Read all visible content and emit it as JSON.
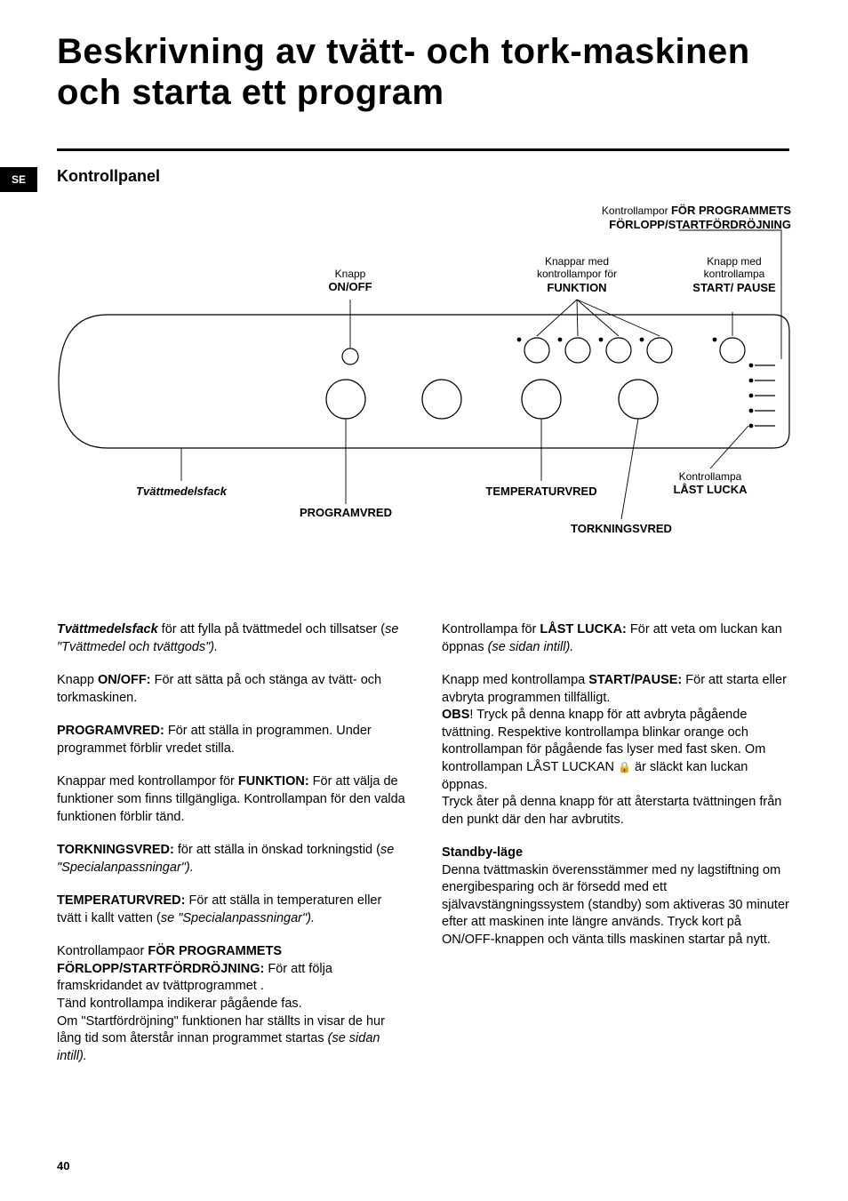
{
  "page_number": "40",
  "side_tab": "SE",
  "title": "Beskrivning av tvätt- och tork-maskinen och starta ett program",
  "section_title": "Kontrollpanel",
  "diagram": {
    "panel_outline_color": "#000000",
    "panel_stroke_width": 1.2,
    "top_right": {
      "prefix": "Kontrollampor ",
      "bold": "FÖR PROGRAMMETS FÖRLOPP/STARTFÖRDRÖJNING"
    },
    "labels": {
      "onoff": {
        "sm": "Knapp",
        "b": "ON/OFF"
      },
      "funkt": {
        "sm1": "Knappar med",
        "sm2": "kontrollampor för",
        "b": "FUNKTION"
      },
      "start": {
        "sm1": "Knapp med",
        "sm2": "kontrollampa",
        "b": "START/ PAUSE"
      },
      "tvatt": {
        "b_it": "Tvättmedelsfack"
      },
      "prog": {
        "b": "PROGRAMVRED"
      },
      "temp": {
        "b": "TEMPERATURVRED"
      },
      "tork": {
        "b": "TORKNINGSVRED"
      },
      "las": {
        "sm": "Kontrollampa",
        "b": "LÅST LUCKA"
      }
    },
    "buttons": {
      "big_radius": 22,
      "small_radius": 14,
      "led_radius": 2.4,
      "fn_count": 4
    }
  },
  "left_col": [
    {
      "type": "p",
      "runs": [
        {
          "t": "Tvättmedelsfack",
          "cls": "ital-bld"
        },
        {
          "t": " för att fylla på tvättmedel och tillsatser ("
        },
        {
          "t": "se \"Tvättmedel och tvättgods\").",
          "cls": "ital"
        }
      ]
    },
    {
      "type": "p",
      "runs": [
        {
          "t": "Knapp "
        },
        {
          "t": "ON/OFF:",
          "cls": "bld"
        },
        {
          "t": " För att sätta på och stänga av tvätt- och torkmaskinen."
        }
      ]
    },
    {
      "type": "p",
      "runs": [
        {
          "t": "PROGRAMVRED:",
          "cls": "bld"
        },
        {
          "t": " För att ställa in programmen. Under programmet förblir vredet stilla."
        }
      ]
    },
    {
      "type": "p",
      "runs": [
        {
          "t": "Knappar med kontrollampor för "
        },
        {
          "t": "FUNKTION:",
          "cls": "bld"
        },
        {
          "t": " För att välja de funktioner som finns tillgängliga. Kontrollampan för den valda funktionen förblir tänd."
        }
      ]
    },
    {
      "type": "p",
      "runs": [
        {
          "t": "TORKNINGSVRED:",
          "cls": "bld"
        },
        {
          "t": " för att ställa in önskad torkningstid ("
        },
        {
          "t": "se \"Specialanpassningar\").",
          "cls": "ital"
        }
      ]
    },
    {
      "type": "p",
      "runs": [
        {
          "t": "TEMPERATURVRED:",
          "cls": "bld"
        },
        {
          "t": " För att ställa in temperaturen eller tvätt i kallt vatten ("
        },
        {
          "t": "se \"Specialanpassningar\").",
          "cls": "ital"
        }
      ]
    },
    {
      "type": "p",
      "runs": [
        {
          "t": "Kontrollampaor "
        },
        {
          "t": "FÖR PROGRAMMETS FÖRLOPP/STARTFÖRDRÖJNING:",
          "cls": "bld"
        },
        {
          "t": " För att följa framskridandet av tvättprogrammet ."
        },
        {
          "t": "\nTänd kontrollampa indikerar pågående fas."
        },
        {
          "t": "\nOm \"Startfördröjning\" funktionen har ställts in visar de hur lång tid som återstår innan programmet startas "
        },
        {
          "t": "(se sidan intill).",
          "cls": "ital"
        }
      ]
    }
  ],
  "right_col": [
    {
      "type": "p",
      "runs": [
        {
          "t": "Kontrollampa för "
        },
        {
          "t": "LÅST LUCKA:",
          "cls": "bld"
        },
        {
          "t": " För att veta om luckan kan öppnas "
        },
        {
          "t": "(se sidan intill).",
          "cls": "ital"
        }
      ]
    },
    {
      "type": "p",
      "runs": [
        {
          "t": "Knapp med kontrollampa "
        },
        {
          "t": "START/PAUSE:",
          "cls": "bld"
        },
        {
          "t": " För att starta eller avbryta programmen tillfälligt."
        },
        {
          "t": "\n"
        },
        {
          "t": "OBS",
          "cls": "bld"
        },
        {
          "t": "! Tryck på denna knapp för att avbryta pågående tvättning. Respektive kontrollampa blinkar orange och kontrollampan för pågående fas lyser med fast sken. Om kontrollampan LÅST LUCKAN "
        },
        {
          "t": "🔒",
          "cls": "lock-icon"
        },
        {
          "t": " är släckt kan luckan öppnas."
        },
        {
          "t": "\nTryck åter på denna knapp för att återstarta tvättningen från den punkt där den har avbrutits."
        }
      ]
    },
    {
      "type": "p",
      "runs": [
        {
          "t": "Standby-läge",
          "cls": "bld"
        },
        {
          "t": "\nDenna tvättmaskin överensstämmer med ny lagstiftning om energibesparing och är försedd med ett självavstängningssystem (standby) som aktiveras 30 minuter efter att maskinen inte längre används. Tryck kort på ON/OFF-knappen och vänta tills maskinen startar på nytt."
        }
      ]
    }
  ]
}
